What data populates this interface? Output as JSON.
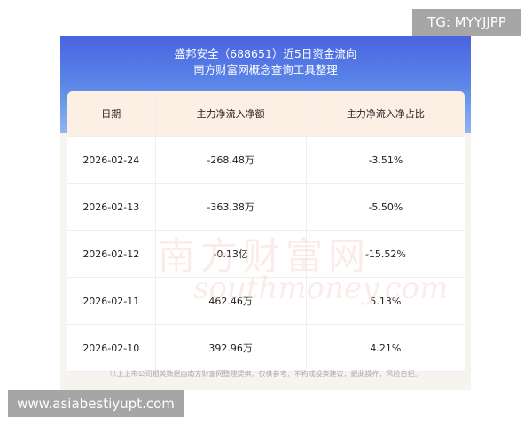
{
  "watermark_tg": "TG: MYYJJPP",
  "watermark_url": "www.asiabestiyupt.com",
  "title_line1": "盛邦安全（688651）近5日资金流向",
  "title_line2": "南方财富网概念查询工具整理",
  "background_watermark": "南方财富网 southmoney.com",
  "columns": [
    "日期",
    "主力净流入净额",
    "主力净流入净占比"
  ],
  "rows": [
    {
      "date": "2026-02-24",
      "amount": "-268.48万",
      "ratio": "-3.51%"
    },
    {
      "date": "2026-02-13",
      "amount": "-363.38万",
      "ratio": "-5.50%"
    },
    {
      "date": "2026-02-12",
      "amount": "-0.13亿",
      "ratio": "-15.52%"
    },
    {
      "date": "2026-02-11",
      "amount": "462.46万",
      "ratio": "5.13%"
    },
    {
      "date": "2026-02-10",
      "amount": "392.96万",
      "ratio": "4.21%"
    }
  ],
  "footer": "以上上市公司相关数据由南方财富网整理提供，仅供参考，不构成投资建议，据此操作，风险自担。"
}
